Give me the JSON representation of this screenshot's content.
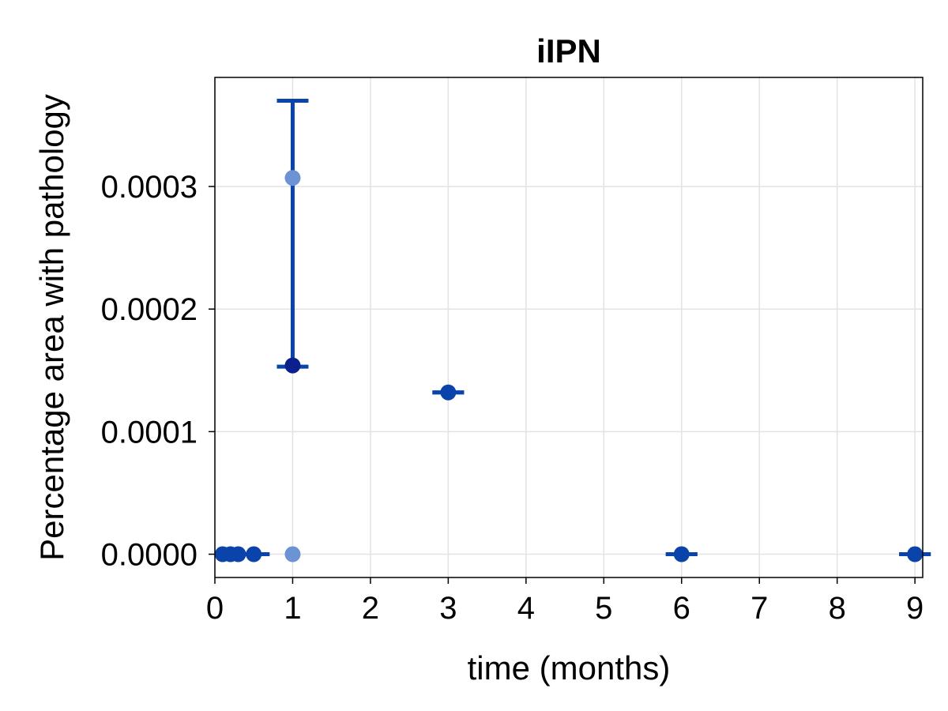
{
  "chart_data": {
    "type": "scatter",
    "title": "iIPN",
    "xlabel": "time (months)",
    "ylabel": "Percentage area with pathology",
    "xlim": [
      0,
      9.1
    ],
    "ylim": [
      -1.9e-05,
      0.000389
    ],
    "x_ticks": [
      0,
      1,
      2,
      3,
      4,
      5,
      6,
      7,
      8,
      9
    ],
    "x_tick_labels": [
      "0",
      "1",
      "2",
      "3",
      "4",
      "5",
      "6",
      "7",
      "8",
      "9"
    ],
    "y_ticks": [
      0.0,
      0.0001,
      0.0002,
      0.0003
    ],
    "y_tick_labels": [
      "0.0000",
      "0.0001",
      "0.0002",
      "0.0003"
    ],
    "grid": true,
    "colors": {
      "mean": "#0a44aa",
      "mean_highlight": "#0d1f8c",
      "individual": "#6c93d4",
      "errorbar": "#0a44aa",
      "grid": "#e3e3e3"
    },
    "series": [
      {
        "role": "individual",
        "points": [
          {
            "x": 1,
            "y": 0.000307
          },
          {
            "x": 1,
            "y": 0.0
          }
        ]
      },
      {
        "role": "mean",
        "points": [
          {
            "x": 0.1,
            "y": 0.0
          },
          {
            "x": 0.2,
            "y": 0.0
          },
          {
            "x": 0.3,
            "y": 0.0
          },
          {
            "x": 0.5,
            "y": 0.0
          },
          {
            "x": 1,
            "y": 0.000154
          },
          {
            "x": 3,
            "y": 0.000132
          },
          {
            "x": 6,
            "y": 0.0
          },
          {
            "x": 9,
            "y": 0.0
          }
        ]
      }
    ],
    "errorbars": [
      {
        "x": 0.5,
        "low": 0.0,
        "high": 0.0
      },
      {
        "x": 1,
        "low": 0.000153,
        "high": 0.00037
      },
      {
        "x": 3,
        "low": 0.000132,
        "high": 0.000132
      },
      {
        "x": 6,
        "low": 0.0,
        "high": 0.0
      },
      {
        "x": 9,
        "low": 0.0,
        "high": 0.0
      }
    ]
  }
}
